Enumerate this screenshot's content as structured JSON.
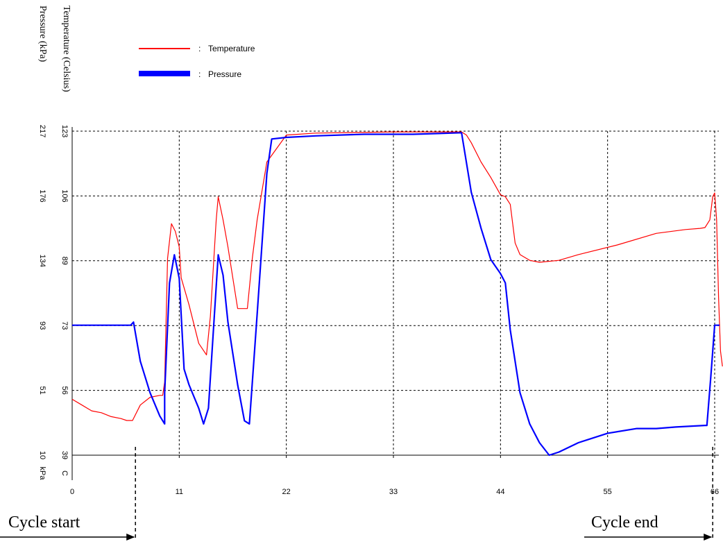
{
  "chart_data": {
    "type": "line",
    "title": "",
    "xlabel": "",
    "y_axes": [
      {
        "label": "Temperature (Celsius)",
        "unit": "C",
        "ticks": [
          "39",
          "56",
          "73",
          "89",
          "106",
          "123"
        ]
      },
      {
        "label": "Pressure (kPa)",
        "unit": "kPa",
        "ticks": [
          "10",
          "51",
          "93",
          "134",
          "176",
          "217"
        ]
      }
    ],
    "x_ticks": [
      "0",
      "11",
      "22",
      "33",
      "44",
      "55",
      "66"
    ],
    "xlim": [
      0,
      66
    ],
    "grid": true,
    "legend_placement": "top-left",
    "colors": {
      "temperature": "#ff0000",
      "pressure": "#0000ff"
    },
    "legend": [
      {
        "sep": ":",
        "name": "Temperature"
      },
      {
        "sep": ":",
        "name": "Pressure"
      }
    ],
    "series": [
      {
        "name": "Temperature",
        "axis": "Temperature (Celsius)",
        "x": [
          0,
          1,
          2,
          3,
          4,
          5,
          5.6,
          6.2,
          7,
          8,
          9,
          9.3,
          9.5,
          9.8,
          10.2,
          10.6,
          11,
          11.2,
          12,
          13,
          13.8,
          14.2,
          14.8,
          15,
          15.5,
          16,
          16.5,
          17,
          17.5,
          18,
          18.5,
          19,
          20,
          22,
          25,
          33,
          38,
          40,
          40.5,
          41,
          42,
          43,
          44,
          44.5,
          45,
          45.5,
          46,
          47,
          48,
          50,
          52,
          56,
          60,
          63,
          64.5,
          65,
          65.5,
          65.8,
          66,
          66.2,
          66.4,
          66.6,
          66.8
        ],
        "values": [
          53.5,
          52,
          50.5,
          50,
          49,
          48.5,
          48,
          48,
          52,
          54,
          54.5,
          54.5,
          58,
          90,
          99,
          97,
          93,
          85,
          78,
          68,
          65,
          75,
          100,
          106,
          100,
          93,
          85,
          77,
          77,
          77,
          90,
          100,
          115,
          122,
          122.5,
          122.8,
          122.8,
          122.8,
          122,
          120,
          115,
          111,
          106.5,
          106,
          104,
          94,
          91,
          89.5,
          89,
          89.5,
          91,
          93.5,
          96.5,
          97.5,
          97.8,
          98,
          100,
          106,
          107,
          100,
          80,
          66,
          62
        ]
      },
      {
        "name": "Pressure",
        "axis": "Pressure (kPa)",
        "x": [
          0,
          3,
          6,
          6.3,
          7,
          8,
          9,
          9.5,
          9.5,
          10,
          10.5,
          11,
          11.5,
          12,
          13,
          13.5,
          14,
          15,
          15.5,
          16,
          17,
          17.7,
          18.2,
          19,
          20,
          20.5,
          22,
          25,
          30,
          35,
          40,
          41,
          42,
          43,
          44,
          44.5,
          45,
          46,
          47,
          48,
          49,
          50,
          52,
          55,
          58,
          60,
          62,
          65,
          65.2,
          65.6,
          66,
          66.5
        ],
        "values": [
          93,
          93,
          93,
          95,
          70,
          50,
          35,
          30,
          50,
          120,
          138,
          123,
          65,
          55,
          40,
          30,
          40,
          138,
          125,
          95,
          55,
          32,
          30,
          100,
          190,
          212,
          213,
          214,
          215,
          215,
          216,
          178,
          155,
          135,
          126,
          120,
          90,
          50,
          30,
          18,
          10,
          12,
          18,
          24,
          27,
          27,
          28,
          29,
          29,
          60,
          93,
          93
        ]
      }
    ]
  },
  "annotations": {
    "cycle_start": "Cycle start",
    "cycle_end": "Cycle end",
    "cycle_start_x": 6.5,
    "cycle_end_x": 65.8
  }
}
